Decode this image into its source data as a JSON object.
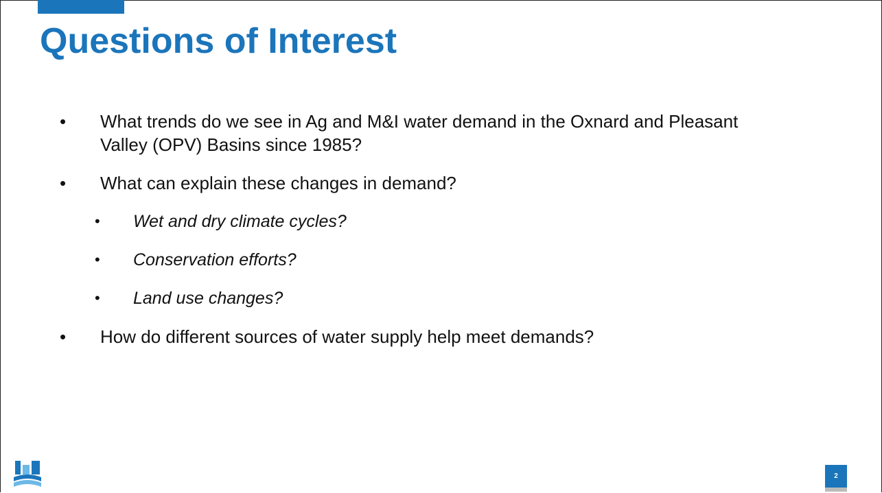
{
  "title": "Questions of Interest",
  "bullets": [
    {
      "text": "What trends do we see in Ag and M&I water demand in the Oxnard and Pleasant Valley (OPV) Basins since 1985?",
      "level": 1
    },
    {
      "text": "What can explain these changes in demand?",
      "level": 1
    },
    {
      "text": "Wet and dry climate cycles?",
      "level": 2
    },
    {
      "text": "Conservation efforts?",
      "level": 2
    },
    {
      "text": "Land use changes?",
      "level": 2
    },
    {
      "text": "How do different sources of water supply help meet demands?",
      "level": 1
    }
  ],
  "page_number": "2"
}
